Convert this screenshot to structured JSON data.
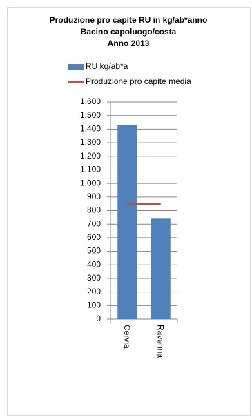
{
  "chart_data": {
    "type": "bar",
    "title": [
      "Produzione pro capite RU in kg/ab*anno",
      "Bacino capoluogo/costa",
      "Anno 2013"
    ],
    "categories": [
      "Cervia",
      "Ravenna"
    ],
    "series": [
      {
        "name": "RU kg/ab*a",
        "type": "bar",
        "color": "#4f81bd",
        "values": [
          1430,
          740
        ]
      },
      {
        "name": "Produzione pro capite media",
        "type": "line",
        "color": "#c0504d",
        "values": [
          848,
          848
        ]
      }
    ],
    "ylim": [
      0,
      1600
    ],
    "yticks": [
      0,
      100,
      200,
      300,
      400,
      500,
      600,
      700,
      800,
      900,
      {
        "value": 1000,
        "label": "1.000"
      },
      {
        "value": 1100,
        "label": "1.100"
      },
      {
        "value": 1200,
        "label": "1.200"
      },
      {
        "value": 1300,
        "label": "1.300"
      },
      {
        "value": 1400,
        "label": "1.400"
      },
      {
        "value": 1500,
        "label": "1.500"
      },
      {
        "value": 1600,
        "label": "1.600"
      }
    ],
    "grid": true
  }
}
